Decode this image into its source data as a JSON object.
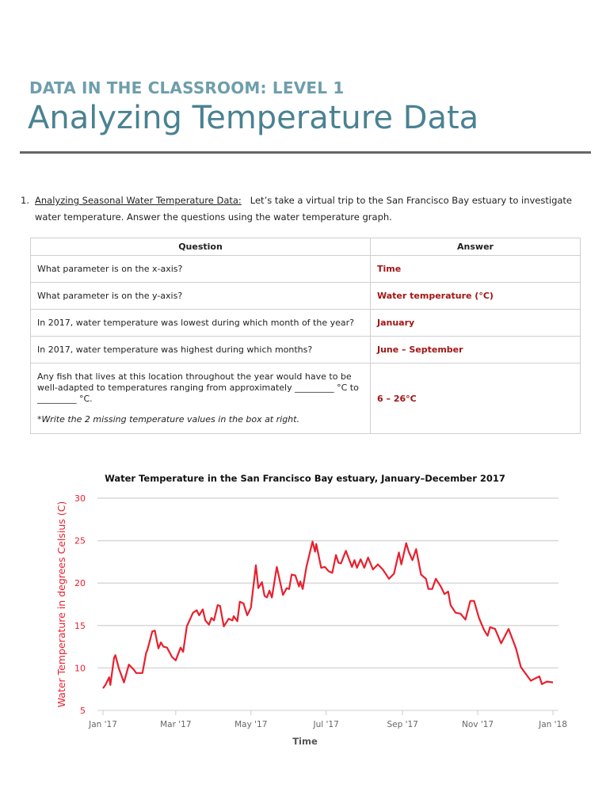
{
  "header": {
    "kicker": "DATA IN THE CLASSROOM: LEVEL 1",
    "title": "Analyzing Temperature Data"
  },
  "intro": {
    "number": "1.",
    "heading": "Analyzing Seasonal Water Temperature Data:",
    "text_line1": "Let’s take a virtual trip to the San Francisco Bay estuary to investigate",
    "text_line2": "water temperature.  Answer the questions using the water temperature graph."
  },
  "table": {
    "headers": [
      "Question",
      "Answer"
    ],
    "rows": [
      {
        "question": "What parameter is on the x-axis?",
        "answer": "Time"
      },
      {
        "question": "What parameter is on the y-axis?",
        "answer": "Water temperature (°C)"
      },
      {
        "question": "In 2017, water temperature was lowest during which month of the year?",
        "answer": "January"
      },
      {
        "question": "In 2017, water temperature was highest during which months?",
        "answer": "June – September"
      },
      {
        "question": "Any fish that lives at this location throughout the year would have to be well-adapted to temperatures ranging from approximately _________  °C to  _________  °C.",
        "note": "*Write the 2 missing temperature values in the box at right.",
        "answer": "6 – 26°C"
      }
    ]
  },
  "chart_data": {
    "type": "line",
    "title": "Water Temperature in the San Francisco Bay estuary, January–December 2017",
    "xlabel": "Time",
    "ylabel": "Water Temperature in degrees Celsius (C)",
    "ylim": [
      5,
      30
    ],
    "yticks": [
      5,
      10,
      15,
      20,
      25,
      30
    ],
    "xlim": [
      "2017-01-01",
      "2018-01-01"
    ],
    "xticks": [
      {
        "date": "2017-01-01",
        "label": "Jan '17"
      },
      {
        "date": "2017-03-01",
        "label": "Mar '17"
      },
      {
        "date": "2017-05-01",
        "label": "May '17"
      },
      {
        "date": "2017-07-01",
        "label": "Jul '17"
      },
      {
        "date": "2017-09-01",
        "label": "Sep '17"
      },
      {
        "date": "2017-11-01",
        "label": "Nov '17"
      },
      {
        "date": "2018-01-01",
        "label": "Jan '18"
      }
    ],
    "grid": "horizontal",
    "line_color": "#e8202e",
    "axis_label_color": "#e8202e",
    "series": [
      {
        "x": [
          "2017-01-01",
          "2017-01-03",
          "2017-01-06",
          "2017-01-07",
          "2017-01-10",
          "2017-01-11",
          "2017-01-14",
          "2017-01-18",
          "2017-01-22",
          "2017-01-26",
          "2017-01-28",
          "2017-02-02",
          "2017-02-05",
          "2017-02-06",
          "2017-02-10",
          "2017-02-12",
          "2017-02-15",
          "2017-02-17",
          "2017-02-19",
          "2017-02-22",
          "2017-02-26",
          "2017-03-01",
          "2017-03-05",
          "2017-03-07",
          "2017-03-10",
          "2017-03-15",
          "2017-03-18",
          "2017-03-20",
          "2017-03-23",
          "2017-03-25",
          "2017-03-28",
          "2017-03-30",
          "2017-04-01",
          "2017-04-04",
          "2017-04-06",
          "2017-04-09",
          "2017-04-13",
          "2017-04-16",
          "2017-04-17",
          "2017-04-20",
          "2017-04-22",
          "2017-04-25",
          "2017-04-28",
          "2017-05-01",
          "2017-05-05",
          "2017-05-07",
          "2017-05-10",
          "2017-05-12",
          "2017-05-14",
          "2017-05-16",
          "2017-05-18",
          "2017-05-22",
          "2017-05-27",
          "2017-05-30",
          "2017-06-01",
          "2017-06-03",
          "2017-06-06",
          "2017-06-09",
          "2017-06-10",
          "2017-06-12",
          "2017-06-15",
          "2017-06-20",
          "2017-06-22",
          "2017-06-23",
          "2017-06-27",
          "2017-06-30",
          "2017-07-03",
          "2017-07-06",
          "2017-07-09",
          "2017-07-11",
          "2017-07-13",
          "2017-07-17",
          "2017-07-22",
          "2017-07-24",
          "2017-07-26",
          "2017-07-29",
          "2017-08-01",
          "2017-08-04",
          "2017-08-08",
          "2017-08-12",
          "2017-08-16",
          "2017-08-21",
          "2017-08-25",
          "2017-08-29",
          "2017-08-31",
          "2017-09-04",
          "2017-09-06",
          "2017-09-09",
          "2017-09-12",
          "2017-09-16",
          "2017-09-20",
          "2017-09-22",
          "2017-09-25",
          "2017-09-28",
          "2017-10-02",
          "2017-10-05",
          "2017-10-08",
          "2017-10-10",
          "2017-10-14",
          "2017-10-18",
          "2017-10-22",
          "2017-10-26",
          "2017-10-29",
          "2017-11-02",
          "2017-11-06",
          "2017-11-09",
          "2017-11-11",
          "2017-11-15",
          "2017-11-20",
          "2017-11-26",
          "2017-12-02",
          "2017-12-06",
          "2017-12-11",
          "2017-12-14",
          "2017-12-18",
          "2017-12-21",
          "2017-12-23",
          "2017-12-27",
          "2018-01-01"
        ],
        "y": [
          7.6,
          8.0,
          8.9,
          8.0,
          11.2,
          11.5,
          9.9,
          8.3,
          10.4,
          9.8,
          9.4,
          9.4,
          11.8,
          12.1,
          14.3,
          14.4,
          12.3,
          13.0,
          12.5,
          12.4,
          11.3,
          10.9,
          12.4,
          11.9,
          14.9,
          16.5,
          16.8,
          16.2,
          16.9,
          15.6,
          15.1,
          15.9,
          15.6,
          17.4,
          17.3,
          14.9,
          15.8,
          15.6,
          16.1,
          15.5,
          17.8,
          17.6,
          16.2,
          17.1,
          22.1,
          19.4,
          20.1,
          18.5,
          18.3,
          19.1,
          18.3,
          21.9,
          18.6,
          19.4,
          19.3,
          21.0,
          20.9,
          19.6,
          20.2,
          19.3,
          21.9,
          24.9,
          23.7,
          24.6,
          21.8,
          21.9,
          21.4,
          21.2,
          23.3,
          22.4,
          22.3,
          23.8,
          21.9,
          22.7,
          21.8,
          22.8,
          21.8,
          23.0,
          21.6,
          22.2,
          21.6,
          20.5,
          21.1,
          23.6,
          22.2,
          24.7,
          23.7,
          22.7,
          24.0,
          21.0,
          20.5,
          19.3,
          19.3,
          20.5,
          19.6,
          18.7,
          19.0,
          17.4,
          16.5,
          16.4,
          15.7,
          17.9,
          17.9,
          15.9,
          14.5,
          13.8,
          14.8,
          14.6,
          12.9,
          14.6,
          12.3,
          10.1,
          9.1,
          8.5,
          8.8,
          9.0,
          8.1,
          8.4,
          8.3
        ]
      }
    ]
  }
}
